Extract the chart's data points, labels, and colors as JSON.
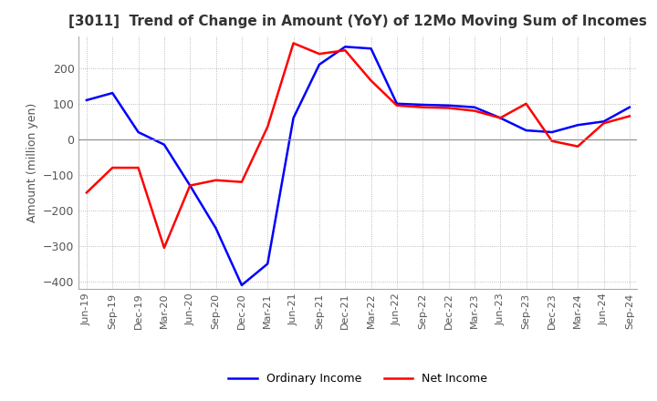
{
  "title": "[3011]  Trend of Change in Amount (YoY) of 12Mo Moving Sum of Incomes",
  "ylabel": "Amount (million yen)",
  "x_labels": [
    "Jun-19",
    "Sep-19",
    "Dec-19",
    "Mar-20",
    "Jun-20",
    "Sep-20",
    "Dec-20",
    "Mar-21",
    "Jun-21",
    "Sep-21",
    "Dec-21",
    "Mar-22",
    "Jun-22",
    "Sep-22",
    "Dec-22",
    "Mar-23",
    "Jun-23",
    "Sep-23",
    "Dec-23",
    "Mar-24",
    "Jun-24",
    "Sep-24"
  ],
  "ordinary_income": [
    110,
    130,
    20,
    -15,
    -130,
    -250,
    -410,
    -350,
    60,
    210,
    260,
    255,
    100,
    97,
    95,
    90,
    60,
    25,
    20,
    40,
    50,
    90
  ],
  "net_income": [
    -150,
    -80,
    -80,
    -305,
    -130,
    -115,
    -120,
    35,
    270,
    240,
    250,
    165,
    95,
    90,
    88,
    80,
    60,
    100,
    -5,
    -20,
    45,
    65
  ],
  "ordinary_income_color": "#0000FF",
  "net_income_color": "#FF0000",
  "ylim": [
    -420,
    290
  ],
  "yticks": [
    -400,
    -300,
    -200,
    -100,
    0,
    100,
    200
  ],
  "background_color": "#FFFFFF",
  "grid_color": "#AAAAAA",
  "title_color": "#333333",
  "title_fontsize": 11,
  "ylabel_fontsize": 9,
  "tick_fontsize": 8
}
